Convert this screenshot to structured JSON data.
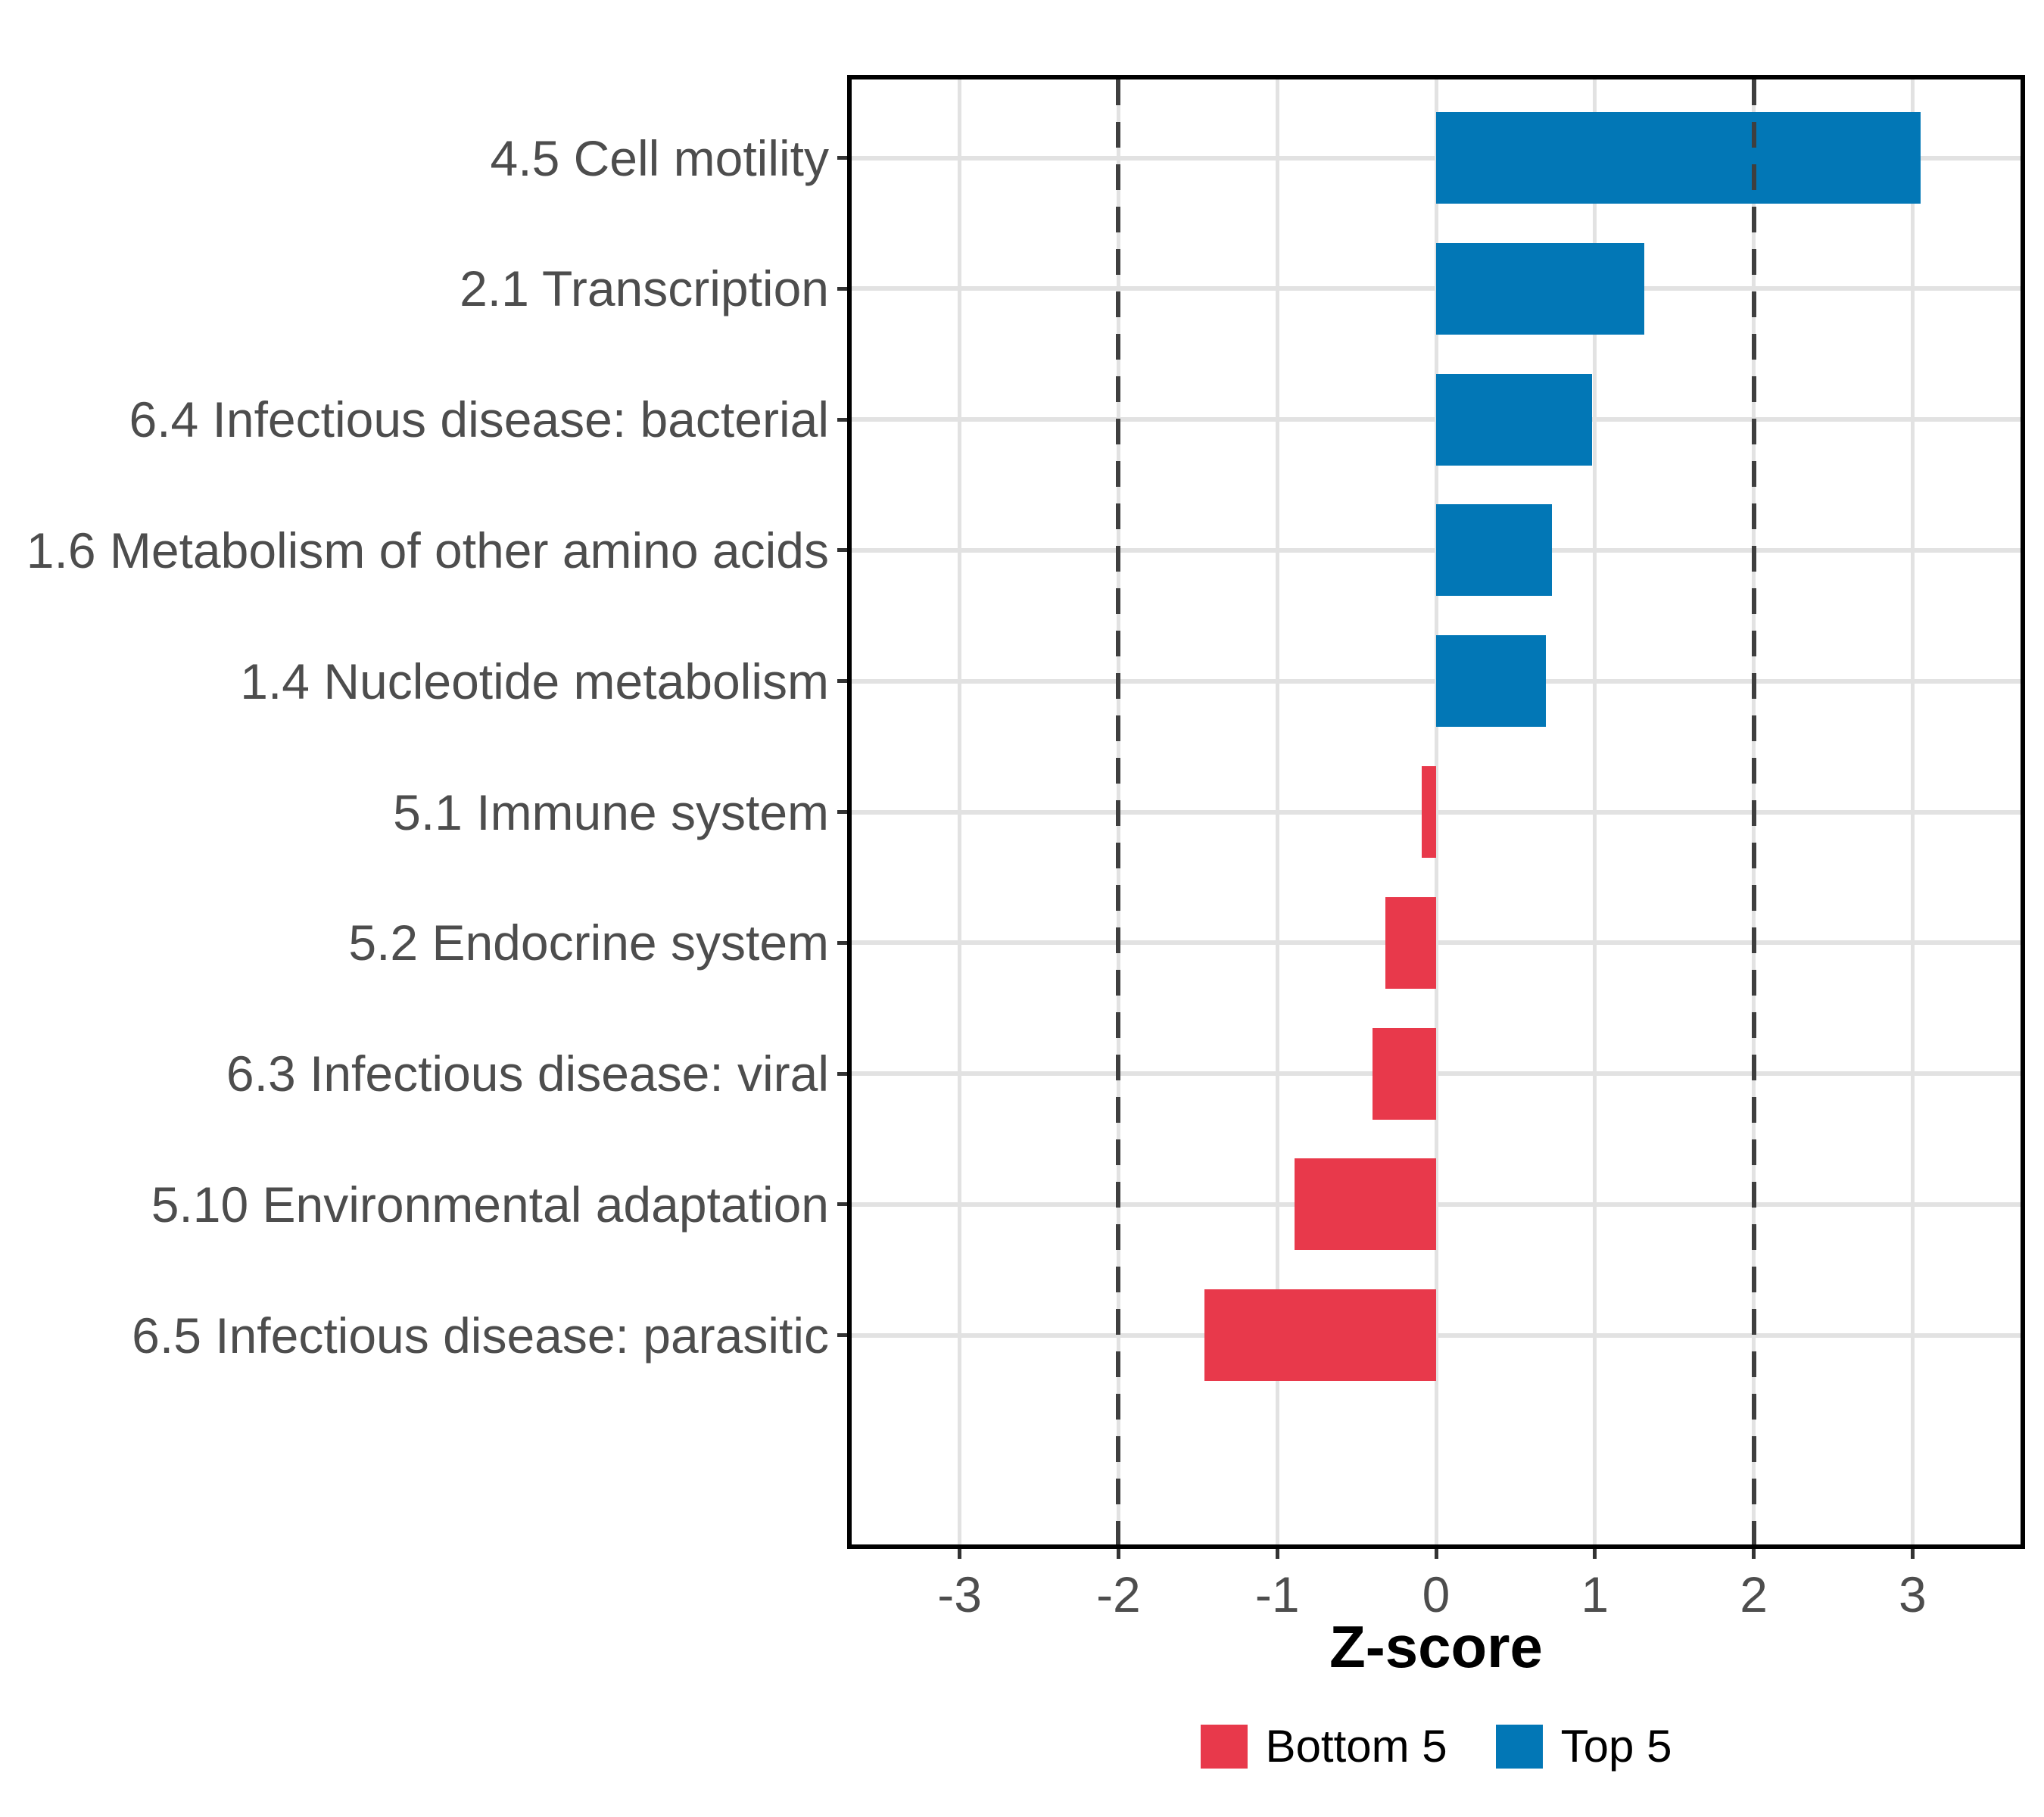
{
  "chart_data": {
    "type": "bar",
    "orientation": "horizontal",
    "title": "",
    "xlabel": "Z-score",
    "ylabel": "",
    "categories": [
      "4.5 Cell motility",
      "2.1 Transcription",
      "6.4 Infectious disease: bacterial",
      "1.6 Metabolism of other amino acids",
      "1.4 Nucleotide metabolism",
      "5.1 Immune system",
      "5.2 Endocrine system",
      "6.3 Infectious disease: viral",
      "5.10 Environmental adaptation",
      "6.5 Infectious disease: parasitic"
    ],
    "values": [
      3.05,
      1.31,
      0.98,
      0.73,
      0.69,
      -0.09,
      -0.32,
      -0.4,
      -0.89,
      -1.46
    ],
    "groups": [
      "Top 5",
      "Top 5",
      "Top 5",
      "Top 5",
      "Top 5",
      "Bottom 5",
      "Bottom 5",
      "Bottom 5",
      "Bottom 5",
      "Bottom 5"
    ],
    "x_ticks": [
      -3,
      -2,
      -1,
      0,
      1,
      2,
      3
    ],
    "xlim": [
      -3.68,
      3.68
    ],
    "reference_lines": [
      -2,
      2
    ],
    "grid": true,
    "legend_position": "bottom",
    "legend": [
      {
        "label": "Bottom 5",
        "color": "#E8394B"
      },
      {
        "label": "Top 5",
        "color": "#0277B6"
      }
    ],
    "colors": {
      "Top 5": "#0277B6",
      "Bottom 5": "#E8394B"
    },
    "grid_color": "#E2E2E2",
    "reference_line_color": "#3F3F3F",
    "axis_text_color": "#4D4D4D"
  }
}
